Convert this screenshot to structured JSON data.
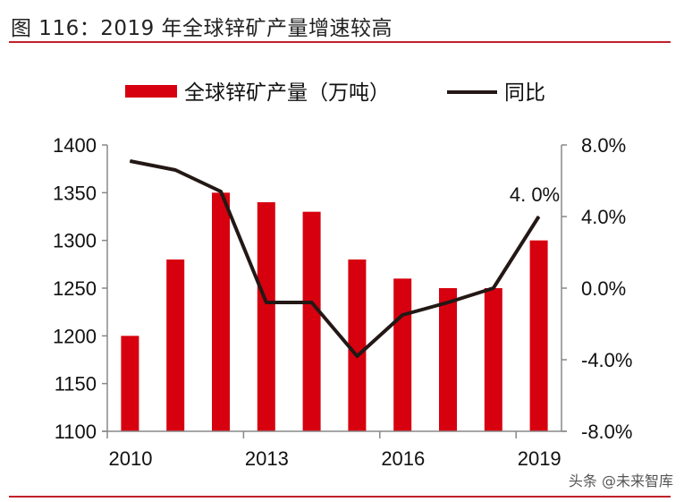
{
  "title": "图 116：2019 年全球锌矿产量增速较高",
  "watermark": "头条 @未来智库",
  "colors": {
    "bar": "#d7000f",
    "line": "#231815",
    "rule": "#c0202a"
  },
  "chart_data": {
    "type": "bar+line",
    "categories": [
      "2010",
      "2011",
      "2012",
      "2013",
      "2014",
      "2015",
      "2016",
      "2017",
      "2018",
      "2019"
    ],
    "x_tick_labels": [
      "2010",
      "2013",
      "2016",
      "2019"
    ],
    "series": [
      {
        "name": "全球锌矿产量（万吨）",
        "type": "bar",
        "axis": "left",
        "values": [
          1200,
          1280,
          1350,
          1340,
          1330,
          1280,
          1260,
          1250,
          1250,
          1300
        ]
      },
      {
        "name": "同比",
        "type": "line",
        "axis": "right",
        "values": [
          7.1,
          6.6,
          5.4,
          -0.8,
          -0.8,
          -3.8,
          -1.5,
          -0.8,
          0.0,
          4.0
        ]
      }
    ],
    "left_axis": {
      "range": [
        1100,
        1400
      ],
      "ticks": [
        "1100",
        "1150",
        "1200",
        "1250",
        "1300",
        "1350",
        "1400"
      ]
    },
    "right_axis": {
      "range": [
        -8,
        8
      ],
      "ticks": [
        "-8.0%",
        "-4.0%",
        "0.0%",
        "4.0%",
        "8.0%"
      ]
    },
    "annotation": "4. 0%",
    "legend": "top",
    "grid": false
  }
}
